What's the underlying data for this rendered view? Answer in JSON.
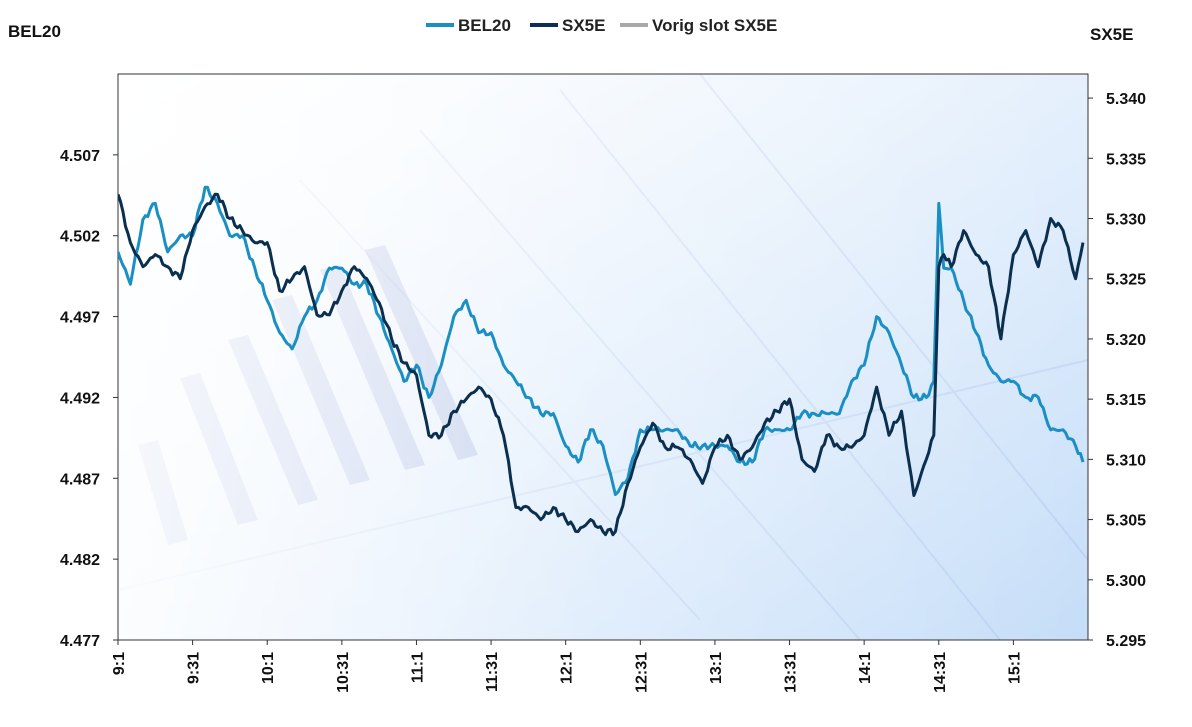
{
  "chart_data": {
    "type": "line",
    "title": "",
    "legend": {
      "placement": "top-center",
      "entries": [
        {
          "name": "BEL20",
          "color": "#1a8fc4"
        },
        {
          "name": "SX5E",
          "color": "#0b2f4f"
        },
        {
          "name": "Vorig slot SX5E",
          "color": "#a8a8a8"
        }
      ]
    },
    "y_left": {
      "label": "BEL20",
      "range": [
        4.477,
        4.512
      ],
      "ticks": [
        "4.507",
        "4.502",
        "4.497",
        "4.492",
        "4.487",
        "4.482",
        "4.477"
      ],
      "tick_values": [
        4.507,
        4.502,
        4.497,
        4.492,
        4.487,
        4.482,
        4.477
      ]
    },
    "y_right": {
      "label": "SX5E",
      "range": [
        5.295,
        5.342
      ],
      "ticks": [
        "5.340",
        "5.335",
        "5.330",
        "5.325",
        "5.320",
        "5.315",
        "5.310",
        "5.305",
        "5.300",
        "5.295"
      ],
      "tick_values": [
        5.34,
        5.335,
        5.33,
        5.325,
        5.32,
        5.315,
        5.31,
        5.305,
        5.3,
        5.295
      ]
    },
    "x_axis": {
      "range": [
        0,
        390
      ],
      "ticks": [
        "9:1",
        "9:31",
        "10:1",
        "10:31",
        "11:1",
        "11:31",
        "12:1",
        "12:31",
        "13:1",
        "13:31",
        "14:1",
        "14:31",
        "15:1"
      ],
      "tick_values": [
        0,
        30,
        60,
        90,
        120,
        150,
        180,
        210,
        240,
        270,
        300,
        330,
        360
      ]
    },
    "grid": false,
    "series": [
      {
        "name": "BEL20",
        "axis": "left",
        "x": [
          0,
          5,
          10,
          15,
          20,
          25,
          30,
          35,
          40,
          45,
          50,
          55,
          60,
          65,
          70,
          75,
          80,
          85,
          90,
          95,
          100,
          105,
          110,
          115,
          120,
          125,
          130,
          135,
          140,
          145,
          150,
          155,
          160,
          165,
          170,
          175,
          180,
          185,
          190,
          195,
          200,
          205,
          210,
          215,
          220,
          225,
          230,
          235,
          240,
          245,
          250,
          255,
          260,
          265,
          270,
          275,
          280,
          285,
          290,
          295,
          300,
          305,
          310,
          315,
          320,
          325,
          328,
          330,
          332,
          335,
          340,
          345,
          350,
          355,
          360,
          365,
          370,
          375,
          380,
          385,
          388
        ],
        "values": [
          4.501,
          4.499,
          4.503,
          4.504,
          4.501,
          4.502,
          4.502,
          4.505,
          4.504,
          4.502,
          4.502,
          4.5,
          4.498,
          4.496,
          4.495,
          4.497,
          4.498,
          4.5,
          4.5,
          4.499,
          4.499,
          4.497,
          4.495,
          4.493,
          4.494,
          4.492,
          4.494,
          4.497,
          4.498,
          4.496,
          4.496,
          4.494,
          4.493,
          4.492,
          4.491,
          4.491,
          4.489,
          4.488,
          4.49,
          4.489,
          4.486,
          4.487,
          4.49,
          4.49,
          4.49,
          4.49,
          4.489,
          4.489,
          4.489,
          4.489,
          4.488,
          4.488,
          4.49,
          4.49,
          4.49,
          4.491,
          4.491,
          4.491,
          4.491,
          4.493,
          4.494,
          4.497,
          4.496,
          4.494,
          4.492,
          4.492,
          4.493,
          4.504,
          4.5,
          4.5,
          4.498,
          4.496,
          4.494,
          4.493,
          4.493,
          4.492,
          4.492,
          4.49,
          4.49,
          4.489,
          4.488
        ]
      },
      {
        "name": "SX5E",
        "axis": "right",
        "x": [
          0,
          5,
          10,
          15,
          20,
          25,
          30,
          35,
          40,
          45,
          50,
          55,
          60,
          65,
          70,
          75,
          80,
          85,
          90,
          95,
          100,
          105,
          110,
          115,
          120,
          125,
          130,
          135,
          140,
          145,
          150,
          155,
          160,
          165,
          170,
          175,
          180,
          185,
          190,
          195,
          200,
          205,
          210,
          215,
          220,
          225,
          230,
          235,
          240,
          245,
          250,
          255,
          260,
          265,
          270,
          275,
          280,
          285,
          290,
          295,
          300,
          305,
          310,
          315,
          320,
          325,
          328,
          330,
          332,
          335,
          340,
          345,
          350,
          355,
          360,
          365,
          370,
          375,
          380,
          385,
          388
        ],
        "values": [
          5.332,
          5.328,
          5.326,
          5.327,
          5.326,
          5.325,
          5.329,
          5.331,
          5.332,
          5.33,
          5.329,
          5.328,
          5.328,
          5.324,
          5.325,
          5.326,
          5.322,
          5.322,
          5.324,
          5.326,
          5.325,
          5.323,
          5.32,
          5.318,
          5.317,
          5.312,
          5.312,
          5.314,
          5.315,
          5.316,
          5.315,
          5.312,
          5.306,
          5.306,
          5.305,
          5.306,
          5.305,
          5.304,
          5.305,
          5.304,
          5.304,
          5.308,
          5.311,
          5.313,
          5.311,
          5.311,
          5.31,
          5.308,
          5.311,
          5.312,
          5.31,
          5.311,
          5.313,
          5.314,
          5.315,
          5.31,
          5.309,
          5.312,
          5.311,
          5.311,
          5.312,
          5.316,
          5.312,
          5.314,
          5.307,
          5.31,
          5.312,
          5.326,
          5.327,
          5.326,
          5.329,
          5.327,
          5.326,
          5.32,
          5.327,
          5.329,
          5.326,
          5.33,
          5.329,
          5.325,
          5.328
        ]
      },
      {
        "name": "Vorig slot SX5E",
        "axis": "right",
        "x": [],
        "values": []
      }
    ]
  }
}
